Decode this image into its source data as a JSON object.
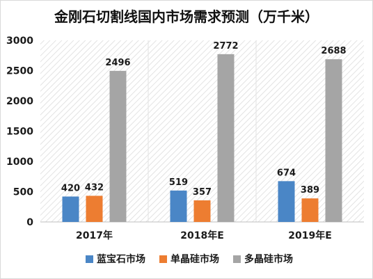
{
  "chart_data": {
    "type": "bar",
    "title": "金刚石切割线国内市场需求预测（万千米）",
    "categories": [
      "2017年",
      "2018年E",
      "2019年E"
    ],
    "series": [
      {
        "name": "蓝宝石市场",
        "values": [
          420,
          519,
          674
        ],
        "color": "#4a86c6"
      },
      {
        "name": "单晶硅市场",
        "values": [
          432,
          357,
          389
        ],
        "color": "#ed7d31"
      },
      {
        "name": "多晶硅市场",
        "values": [
          2496,
          2772,
          2688
        ],
        "color": "#a5a5a5"
      }
    ],
    "ylim": [
      0,
      3000
    ],
    "yticks": [
      0,
      500,
      1000,
      1500,
      2000,
      2500,
      3000
    ],
    "grid": false,
    "legend_position": "bottom",
    "plot_background": "hatched"
  }
}
